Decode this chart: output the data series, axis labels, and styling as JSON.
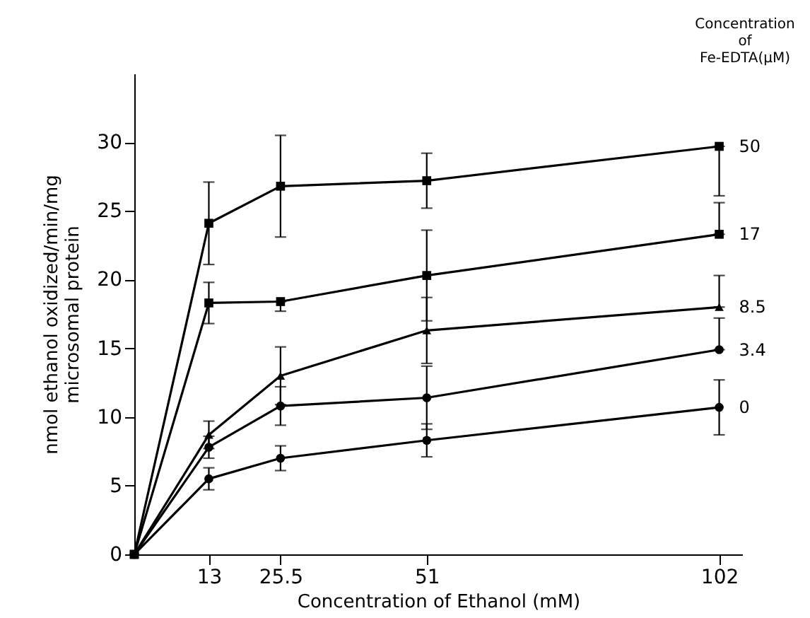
{
  "chart_data": {
    "type": "line",
    "xlabel": "Concentration of Ethanol (mM)",
    "ylabel": "nmol ethanol oxidized/min/mg\nmicrosomal protein",
    "legend_title": "Concentration of Fe-EDTA(μM)",
    "legend": "right",
    "x": [
      0,
      13,
      25.5,
      51,
      102
    ],
    "xlim": [
      0,
      106
    ],
    "xticks": [
      13,
      {
        "value": 25.5,
        "label": "25.5"
      },
      51,
      102
    ],
    "ylim": [
      0,
      35
    ],
    "yticks": [
      0,
      5,
      10,
      15,
      20,
      25,
      30
    ],
    "line_style": "solid",
    "series": [
      {
        "name": "50",
        "color": "#000000",
        "marker": "square",
        "values": [
          0,
          24.1,
          26.8,
          27.2,
          29.7
        ],
        "errors": [
          null,
          3,
          3.7,
          2,
          [
            26.1,
            29.7
          ]
        ]
      },
      {
        "name": "17",
        "color": "#000000",
        "marker": "square",
        "values": [
          0,
          18.3,
          18.4,
          20.3,
          23.3
        ],
        "errors": [
          null,
          1.5,
          [
            17.7,
            18.4
          ],
          3.3,
          [
            23.3,
            25.6
          ]
        ]
      },
      {
        "name": "8.5",
        "color": "#000000",
        "marker": "triangle",
        "values": [
          0,
          8.7,
          13.0,
          16.3,
          18.0
        ],
        "errors": [
          null,
          1,
          2.1,
          2.4,
          [
            18.0,
            20.3
          ]
        ]
      },
      {
        "name": "3.4",
        "color": "#000000",
        "marker": "circle",
        "values": [
          0,
          7.8,
          10.8,
          11.4,
          14.9
        ],
        "errors": [
          null,
          0.8,
          1.4,
          2.3,
          [
            14.9,
            17.2
          ]
        ]
      },
      {
        "name": "0",
        "color": "#000000",
        "marker": "circle",
        "values": [
          0,
          5.5,
          7.0,
          8.3,
          10.7
        ],
        "errors": [
          null,
          0.8,
          0.9,
          1.2,
          2
        ]
      }
    ]
  }
}
